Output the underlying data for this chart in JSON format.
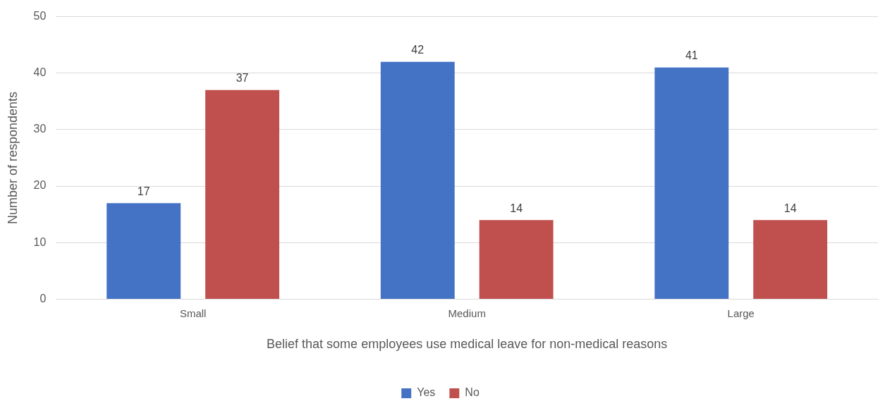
{
  "chart_data": {
    "type": "bar",
    "xlabel": "Belief that some employees use medical leave for non-medical reasons",
    "ylabel": "Number of respondents",
    "categories": [
      "Small",
      "Medium",
      "Large"
    ],
    "series": [
      {
        "name": "Yes",
        "color": "#4472c4",
        "values": [
          17,
          42,
          41
        ]
      },
      {
        "name": "No",
        "color": "#c0504d",
        "values": [
          37,
          14,
          14
        ]
      }
    ],
    "ylim": [
      0,
      50
    ],
    "yticks": [
      0,
      10,
      20,
      30,
      40,
      50
    ],
    "grid": "y",
    "legend": "bottom",
    "data_labels": true
  }
}
